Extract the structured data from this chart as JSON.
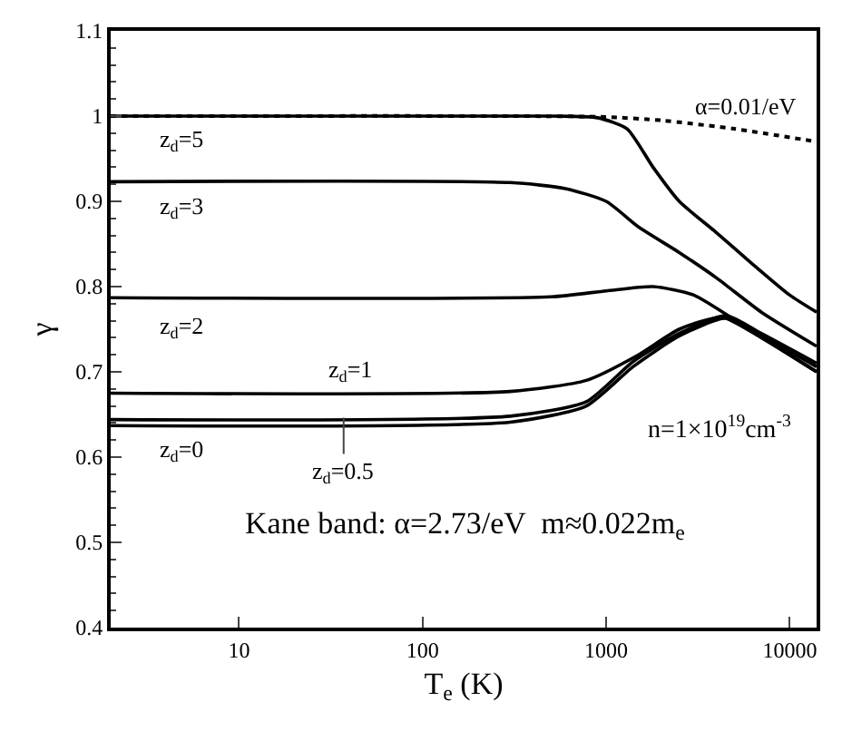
{
  "chart_data": {
    "type": "line",
    "xlabel": "T$_{e}$ (K)",
    "ylabel": "γ",
    "log": "x",
    "grid": false,
    "legend": false,
    "marker": "none",
    "xlim": [
      2,
      14000
    ],
    "xticks": [
      10,
      100,
      1000,
      10000
    ],
    "ylim": [
      0.4,
      1.1
    ],
    "yticks": [
      0.4,
      0.5,
      0.6,
      0.7,
      0.8,
      0.9,
      1.0,
      1.1
    ],
    "series": [
      {
        "name": "α=0.01/eV",
        "color": "#000000",
        "line_style": "dotted",
        "x": [
          2,
          300,
          1000,
          2000,
          5000,
          14000
        ],
        "values": [
          1.0,
          1.0,
          0.999,
          0.995,
          0.985,
          0.97
        ]
      },
      {
        "name": "z$_{d}$=5",
        "color": "#000000",
        "line_style": "solid",
        "x": [
          2,
          500,
          900,
          1300,
          1800,
          2500,
          3900,
          6000,
          10000,
          14000
        ],
        "values": [
          1.0,
          1.0,
          0.998,
          0.985,
          0.94,
          0.9,
          0.865,
          0.83,
          0.79,
          0.77
        ]
      },
      {
        "name": "z$_{d}$=3",
        "color": "#000000",
        "line_style": "solid",
        "x": [
          2,
          300,
          600,
          1000,
          1500,
          2500,
          4000,
          7000,
          14000
        ],
        "values": [
          0.923,
          0.922,
          0.915,
          0.9,
          0.87,
          0.84,
          0.81,
          0.77,
          0.73
        ]
      },
      {
        "name": "z$_{d}$=2",
        "color": "#000000",
        "line_style": "solid",
        "x": [
          2,
          500,
          1000,
          1800,
          3000,
          6000,
          14000
        ],
        "values": [
          0.787,
          0.788,
          0.795,
          0.8,
          0.79,
          0.75,
          0.7
        ]
      },
      {
        "name": "z$_{d}$=1",
        "color": "#000000",
        "line_style": "solid",
        "x": [
          2,
          300,
          780,
          1500,
          2500,
          4300,
          7000,
          14000
        ],
        "values": [
          0.675,
          0.677,
          0.69,
          0.72,
          0.75,
          0.764,
          0.74,
          0.7
        ]
      },
      {
        "name": "z$_{d}$=0.5",
        "color": "#000000",
        "line_style": "solid",
        "x": [
          2,
          300,
          780,
          1400,
          2500,
          4500,
          7000,
          14000
        ],
        "values": [
          0.644,
          0.648,
          0.665,
          0.712,
          0.745,
          0.766,
          0.745,
          0.71
        ]
      },
      {
        "name": "z$_{d}$=0",
        "color": "#000000",
        "line_style": "solid",
        "x": [
          2,
          300,
          780,
          1400,
          2500,
          4500,
          7000,
          14000
        ],
        "values": [
          0.637,
          0.641,
          0.66,
          0.706,
          0.742,
          0.763,
          0.742,
          0.706
        ]
      }
    ],
    "annotations": [
      "n=1×10$^{19}$cm$^{-3}$",
      "Kane band: α=2.73/eV  m≈0.022m$_{e}$"
    ]
  }
}
